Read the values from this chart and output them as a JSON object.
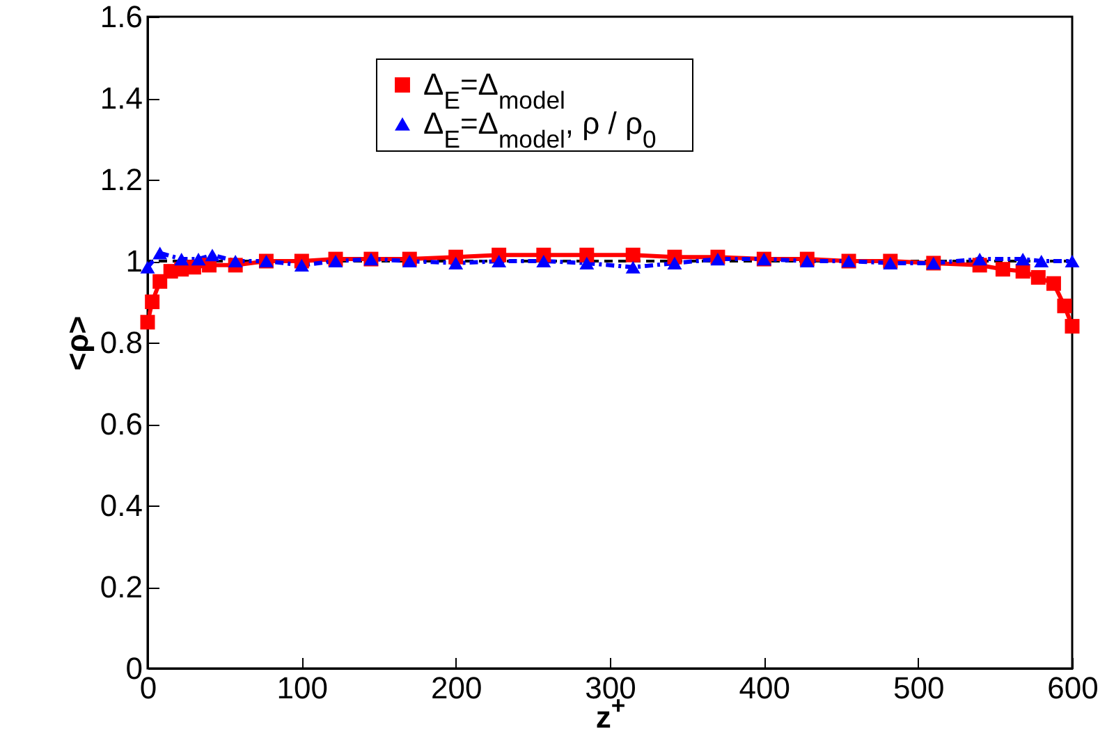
{
  "chart_data": {
    "type": "line",
    "xlabel": "z$^{+}$",
    "ylabel": "<ρ>",
    "xlim": [
      0,
      600
    ],
    "ylim": [
      0,
      1.6
    ],
    "xticks": [
      0,
      100,
      200,
      300,
      400,
      500,
      600
    ],
    "yticks": [
      0,
      0.2,
      0.4,
      0.6,
      0.8,
      1,
      1.2,
      1.4,
      1.6
    ],
    "grid": false,
    "legend": "top",
    "ref_lines": [
      {
        "axis": "y",
        "value": 1,
        "color": "#000000",
        "line_style": "dashed"
      }
    ],
    "series": [
      {
        "name": "Δ$_{E}$=Δ$_{model}$",
        "color": "#ff0000",
        "marker": "square",
        "line_style": "solid",
        "x": [
          0,
          3,
          8,
          15,
          22,
          30,
          40,
          57,
          77,
          100,
          122,
          145,
          170,
          200,
          228,
          257,
          285,
          315,
          342,
          370,
          400,
          428,
          455,
          482,
          510,
          540,
          555,
          568,
          578,
          588,
          595,
          600
        ],
        "values": [
          0.85,
          0.9,
          0.95,
          0.975,
          0.98,
          0.985,
          0.99,
          0.99,
          1.0,
          1.0,
          1.005,
          1.005,
          1.005,
          1.01,
          1.015,
          1.015,
          1.015,
          1.015,
          1.01,
          1.01,
          1.005,
          1.005,
          1.0,
          1.0,
          0.995,
          0.99,
          0.98,
          0.975,
          0.96,
          0.945,
          0.89,
          0.84
        ]
      },
      {
        "name": "Δ$_{E}$=Δ$_{model}$, ρ / ρ$_{0}$",
        "color": "#0000ff",
        "marker": "triangle",
        "line_style": "dashdot",
        "x": [
          0,
          8,
          22,
          33,
          42,
          57,
          77,
          100,
          122,
          145,
          170,
          200,
          228,
          257,
          285,
          315,
          342,
          370,
          400,
          428,
          455,
          482,
          510,
          540,
          568,
          580,
          600
        ],
        "values": [
          0.985,
          1.02,
          1.005,
          1.005,
          1.015,
          1.0,
          1.0,
          0.99,
          1.0,
          1.005,
          1.0,
          0.995,
          1.0,
          1.0,
          0.995,
          0.985,
          0.995,
          1.005,
          1.005,
          1.0,
          1.0,
          0.995,
          0.995,
          1.005,
          1.005,
          1.0,
          1.0
        ]
      }
    ]
  }
}
